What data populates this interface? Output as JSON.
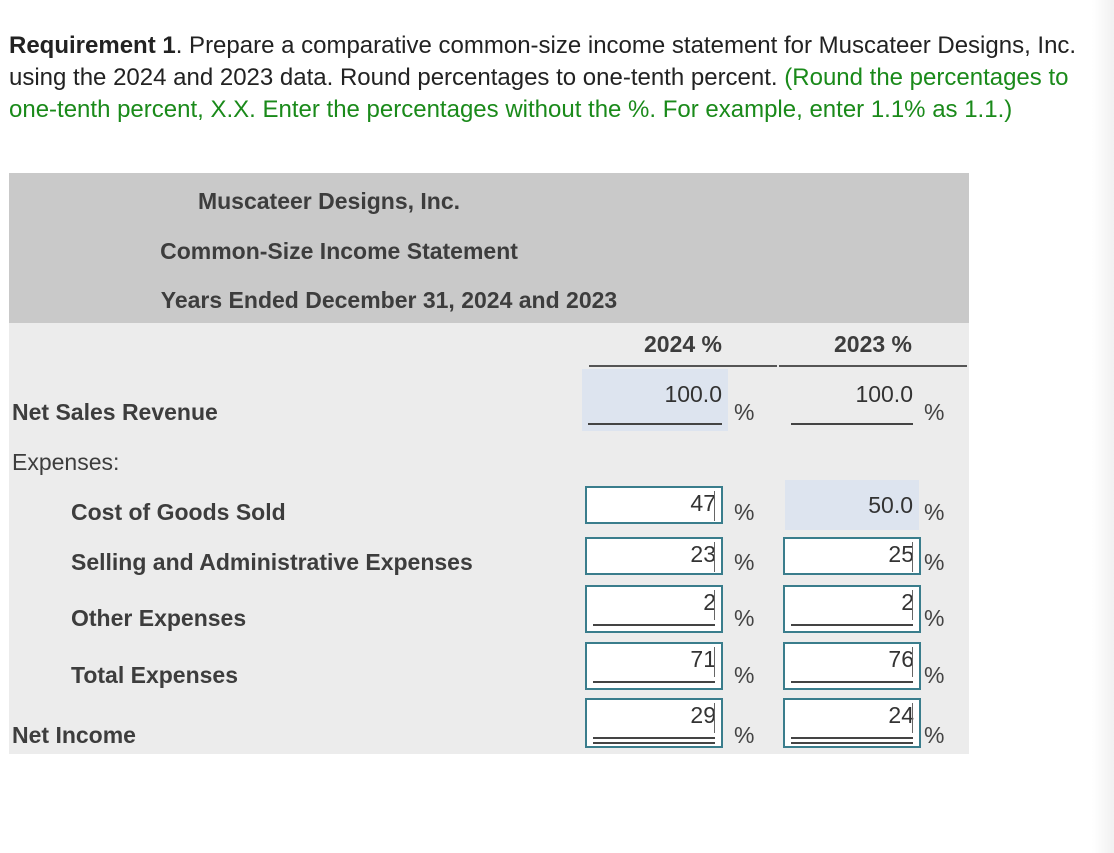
{
  "instructions": {
    "label": "Requirement 1",
    "text": ". Prepare a comparative common-size income statement for Muscateer Designs, Inc. using the 2024 and 2023 data. Round percentages to one-tenth percent. ",
    "hint": "(Round the percentages to one-tenth percent, X.X. Enter the percentages without the %. For example, enter 1.1% as 1.1.)"
  },
  "statement": {
    "company": "Muscateer Designs, Inc.",
    "title": "Common-Size Income Statement",
    "period": "Years Ended December 31, 2024 and 2023",
    "col_2024": "2024 %",
    "col_2023": "2023 %",
    "pct_symbol": "%",
    "rows": {
      "net_sales": {
        "label": "Net Sales Revenue",
        "v2024": "100.0",
        "v2023": "100.0"
      },
      "expenses": {
        "label": "Expenses:"
      },
      "cogs": {
        "label": "Cost of Goods Sold",
        "v2024": "47",
        "v2023": "50.0"
      },
      "sga": {
        "label": "Selling and Administrative Expenses",
        "v2024": "23",
        "v2023": "25"
      },
      "other": {
        "label": "Other Expenses",
        "v2024": "2",
        "v2023": "2"
      },
      "total": {
        "label": "Total Expenses",
        "v2024": "71",
        "v2023": "76"
      },
      "net_income": {
        "label": "Net Income",
        "v2024": "29",
        "v2023": "24"
      }
    }
  },
  "colors": {
    "header_bg": "#c9c9c9",
    "body_bg": "#ececec",
    "given_cell": "#dde4ef",
    "input_border": "#3a7d8c",
    "hint_green": "#1a8a1a"
  }
}
